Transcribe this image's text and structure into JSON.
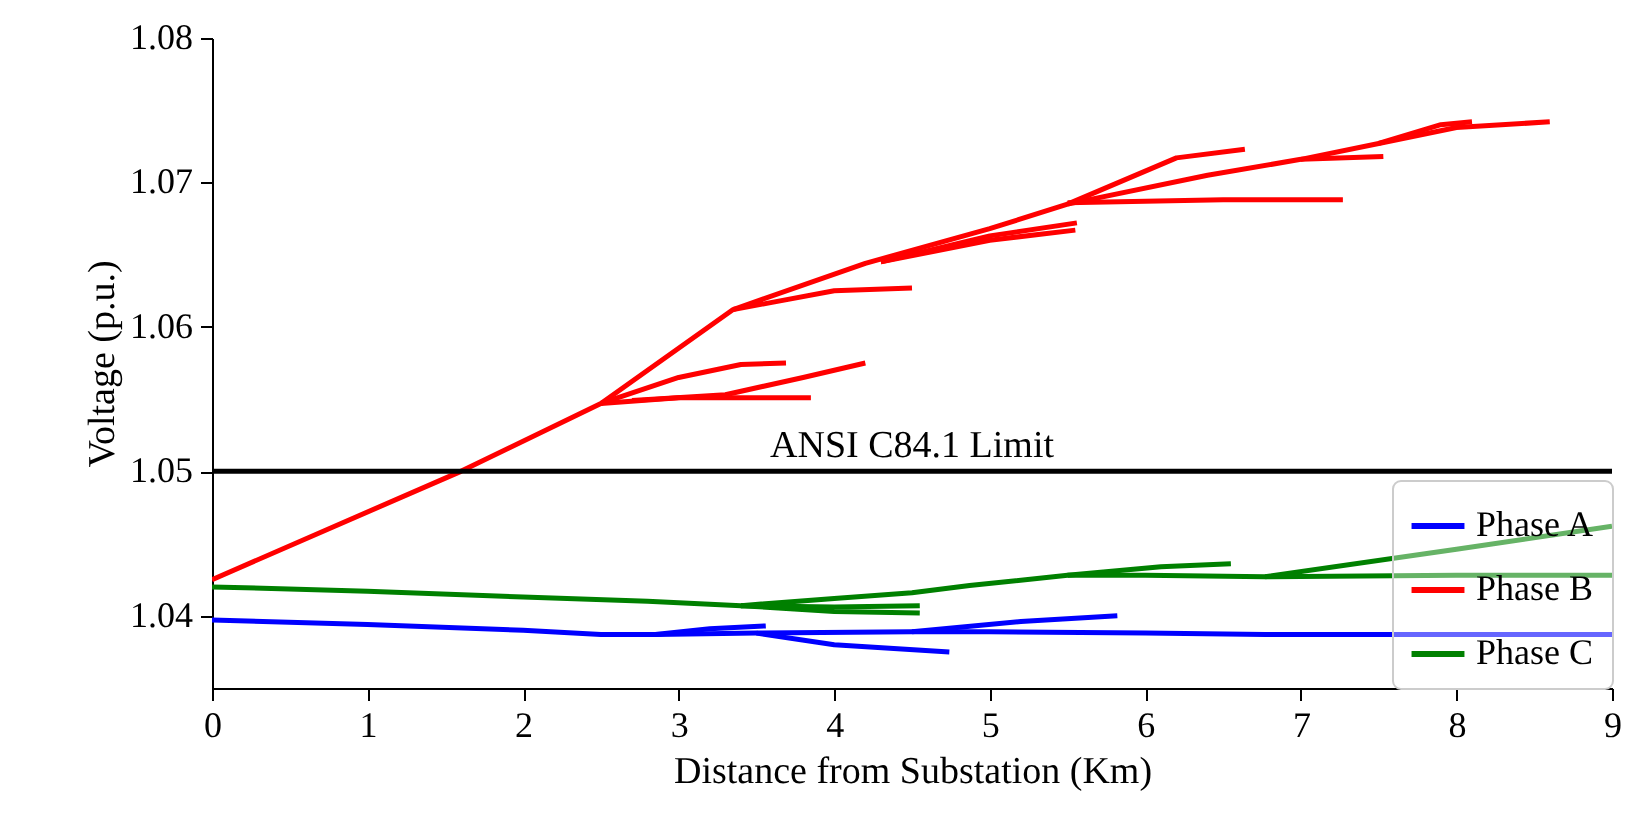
{
  "chart_data": {
    "type": "line",
    "xlabel": "Distance from Substation (Km)",
    "ylabel": "Voltage (p.u.)",
    "xlim": [
      0,
      9
    ],
    "xticks": [
      0,
      1,
      2,
      3,
      4,
      5,
      6,
      7,
      8,
      9
    ],
    "ylim": [
      1.035,
      1.08
    ],
    "yticks": [
      1.04,
      1.05,
      1.06,
      1.07,
      1.08
    ],
    "legend": "bottom right",
    "line_style": "solid",
    "ref_lines": [
      {
        "axis": "y",
        "value": 1.05,
        "label": "ANSI C84.1 Limit",
        "color": "#000000"
      }
    ],
    "series": [
      {
        "name": "Phase A",
        "color": "#0000ff",
        "x": [
          0,
          1,
          2,
          2.5,
          2.85,
          3.5,
          4.5,
          5,
          6,
          6.77,
          7.5,
          8,
          9
        ],
        "values": [
          1.0397,
          1.0394,
          1.039,
          1.0387,
          1.0387,
          1.0388,
          1.0389,
          1.0389,
          1.0388,
          1.0387,
          1.0387,
          1.0387,
          1.0387
        ]
      },
      {
        "name": "Phase B",
        "color": "#ff0000",
        "x": [
          0,
          1.6,
          2.5,
          3.35,
          4.2,
          5,
          5.5,
          6.4,
          7,
          7.5,
          8,
          8.6
        ],
        "values": [
          1.0425,
          1.05,
          1.0547,
          1.0612,
          1.0644,
          1.0668,
          1.0685,
          1.0705,
          1.0716,
          1.0727,
          1.0738,
          1.0742
        ]
      },
      {
        "name": "Phase C",
        "color": "#008000",
        "x": [
          0,
          1,
          2,
          2.8,
          3.4,
          4,
          4.5,
          4.87,
          5.5,
          6,
          6.77,
          8,
          9
        ],
        "values": [
          1.042,
          1.0417,
          1.0413,
          1.041,
          1.0407,
          1.0412,
          1.0416,
          1.0421,
          1.0428,
          1.0428,
          1.0427,
          1.0428,
          1.0428
        ]
      },
      {
        "color": "#0000ff",
        "x": [
          2.85,
          3.2,
          3.56
        ],
        "values": [
          1.0387,
          1.0391,
          1.0393
        ]
      },
      {
        "color": "#0000ff",
        "x": [
          3.5,
          4.0,
          4.74
        ],
        "values": [
          1.0388,
          1.038,
          1.0375
        ]
      },
      {
        "color": "#0000ff",
        "x": [
          4.5,
          5.2,
          5.82
        ],
        "values": [
          1.0389,
          1.0396,
          1.04
        ]
      },
      {
        "color": "#ff0000",
        "x": [
          2.5,
          3.0,
          3.4,
          3.69
        ],
        "values": [
          1.0547,
          1.0565,
          1.0574,
          1.0575
        ]
      },
      {
        "color": "#ff0000",
        "x": [
          2.7,
          3.3,
          3.8,
          4.2
        ],
        "values": [
          1.0549,
          1.0553,
          1.0565,
          1.0575
        ]
      },
      {
        "color": "#ff0000",
        "x": [
          2.5,
          3.0,
          3.85
        ],
        "values": [
          1.0547,
          1.0551,
          1.0551
        ]
      },
      {
        "color": "#ff0000",
        "x": [
          3.35,
          3.6,
          4.0,
          4.5
        ],
        "values": [
          1.0612,
          1.0617,
          1.0625,
          1.0627
        ]
      },
      {
        "color": "#ff0000",
        "x": [
          4.3,
          5.0,
          5.56
        ],
        "values": [
          1.0645,
          1.0663,
          1.0672
        ]
      },
      {
        "color": "#ff0000",
        "x": [
          4.3,
          5.0,
          5.55
        ],
        "values": [
          1.0645,
          1.066,
          1.0667
        ]
      },
      {
        "color": "#ff0000",
        "x": [
          5.5,
          6.5,
          7.27
        ],
        "values": [
          1.0686,
          1.0688,
          1.0688
        ]
      },
      {
        "color": "#ff0000",
        "x": [
          5.5,
          6.2,
          6.64
        ],
        "values": [
          1.0685,
          1.0717,
          1.0723
        ]
      },
      {
        "color": "#ff0000",
        "x": [
          7.0,
          7.53
        ],
        "values": [
          1.0716,
          1.0718
        ]
      },
      {
        "color": "#ff0000",
        "x": [
          7.5,
          7.9,
          8.1
        ],
        "values": [
          1.0727,
          1.074,
          1.0742
        ]
      },
      {
        "color": "#008000",
        "x": [
          3.4,
          4.0,
          4.55
        ],
        "values": [
          1.0407,
          1.0406,
          1.0407
        ]
      },
      {
        "color": "#008000",
        "x": [
          3.4,
          4.0,
          4.55
        ],
        "values": [
          1.0407,
          1.0403,
          1.0402
        ]
      },
      {
        "color": "#008000",
        "x": [
          5.5,
          6.1,
          6.55
        ],
        "values": [
          1.0428,
          1.0434,
          1.0436
        ]
      },
      {
        "color": "#008000",
        "x": [
          6.77,
          8,
          9
        ],
        "values": [
          1.0427,
          1.0446,
          1.0462
        ]
      }
    ]
  }
}
